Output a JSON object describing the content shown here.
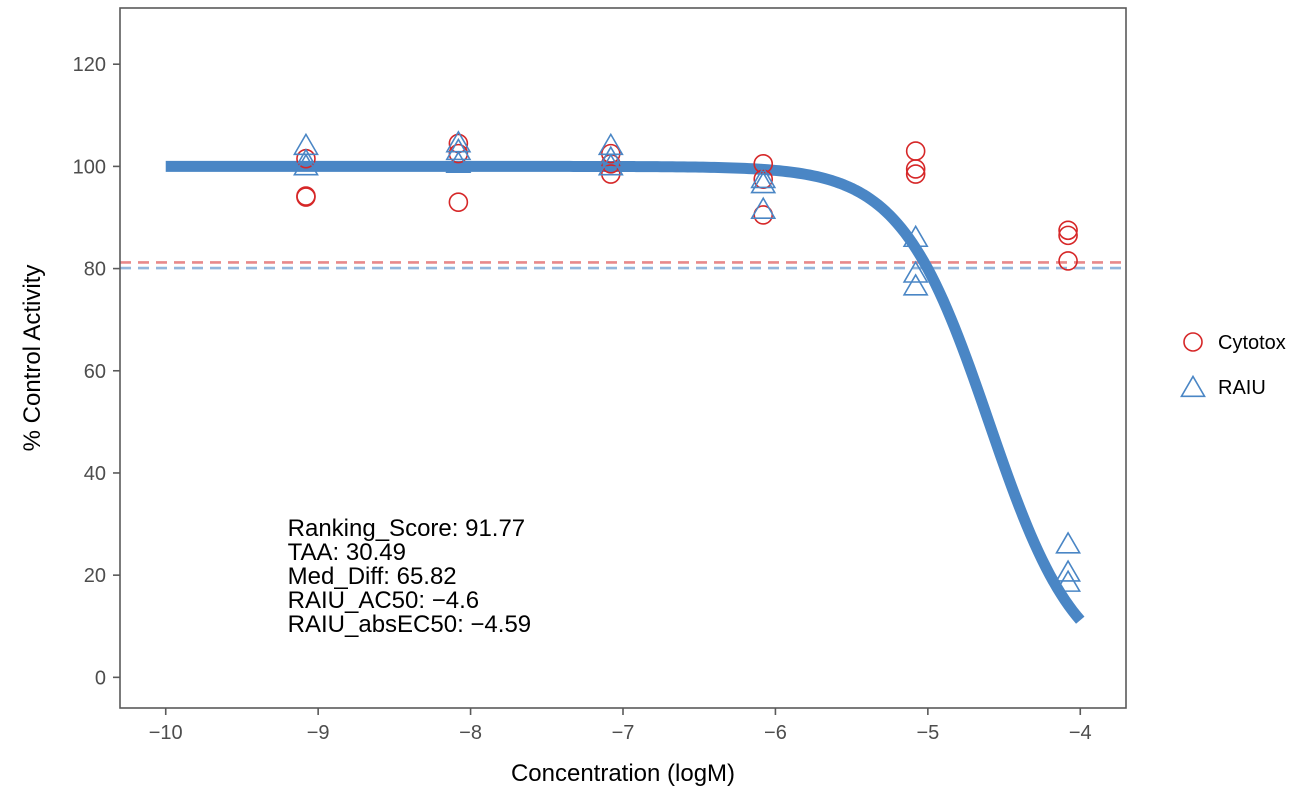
{
  "chart_data": {
    "type": "scatter",
    "title": "",
    "xlabel": "Concentration (logM)",
    "ylabel": "% Control Activity",
    "xlim": [
      -10.3,
      -3.7
    ],
    "ylim": [
      -6,
      131
    ],
    "xticks": [
      -10,
      -9,
      -8,
      -7,
      -6,
      -5,
      -4
    ],
    "xtick_labels": [
      "−10",
      "−9",
      "−8",
      "−7",
      "−6",
      "−5",
      "−4"
    ],
    "yticks": [
      0,
      20,
      40,
      60,
      80,
      100,
      120
    ],
    "ytick_labels": [
      "0",
      "20",
      "40",
      "60",
      "80",
      "100",
      "120"
    ],
    "grid": false,
    "legend_position": "right",
    "series": [
      {
        "name": "Cytotox",
        "marker": "circle",
        "color": "#d62728",
        "points": [
          [
            -9.08,
            94.0
          ],
          [
            -9.08,
            94.2
          ],
          [
            -9.08,
            101.5
          ],
          [
            -8.08,
            93.0
          ],
          [
            -8.08,
            102.5
          ],
          [
            -8.08,
            104.5
          ],
          [
            -7.08,
            98.5
          ],
          [
            -7.08,
            100.5
          ],
          [
            -7.08,
            102.5
          ],
          [
            -6.08,
            90.5
          ],
          [
            -6.08,
            97.5
          ],
          [
            -6.08,
            100.5
          ],
          [
            -5.08,
            98.5
          ],
          [
            -5.08,
            99.5
          ],
          [
            -5.08,
            103.0
          ],
          [
            -4.08,
            81.5
          ],
          [
            -4.08,
            86.5
          ],
          [
            -4.08,
            87.5
          ]
        ]
      },
      {
        "name": "RAIU",
        "marker": "triangle",
        "color": "#4a86c5",
        "points": [
          [
            -9.08,
            100.0
          ],
          [
            -9.08,
            101.0
          ],
          [
            -9.08,
            104.0
          ],
          [
            -8.08,
            100.5
          ],
          [
            -8.08,
            103.0
          ],
          [
            -8.08,
            104.5
          ],
          [
            -7.08,
            100.0
          ],
          [
            -7.08,
            101.5
          ],
          [
            -7.08,
            104.0
          ],
          [
            -6.08,
            91.5
          ],
          [
            -6.08,
            96.5
          ],
          [
            -6.08,
            97.5
          ],
          [
            -5.08,
            76.5
          ],
          [
            -5.08,
            79.0
          ],
          [
            -5.08,
            86.0
          ],
          [
            -4.08,
            18.5
          ],
          [
            -4.08,
            20.5
          ],
          [
            -4.08,
            26.0
          ]
        ]
      }
    ],
    "fit_curve": {
      "series": "RAIU",
      "color": "#4a86c5",
      "top": 100,
      "bottom": 0,
      "ac50": -4.6,
      "hill": 1.5,
      "x_range": [
        -10,
        -4
      ]
    },
    "reference_lines": [
      {
        "series": "Cytotox",
        "y": 81.2,
        "color": "#e8898a",
        "style": "dashed"
      },
      {
        "series": "RAIU",
        "y": 80.1,
        "color": "#92b6dc",
        "style": "dashed"
      }
    ],
    "annotations": [
      "Ranking_Score: 91.77",
      "TAA: 30.49",
      "Med_Diff: 65.82",
      "RAIU_AC50: −4.6",
      "RAIU_absEC50: −4.59"
    ],
    "annotation_anchor": {
      "x": -9.2
    }
  }
}
